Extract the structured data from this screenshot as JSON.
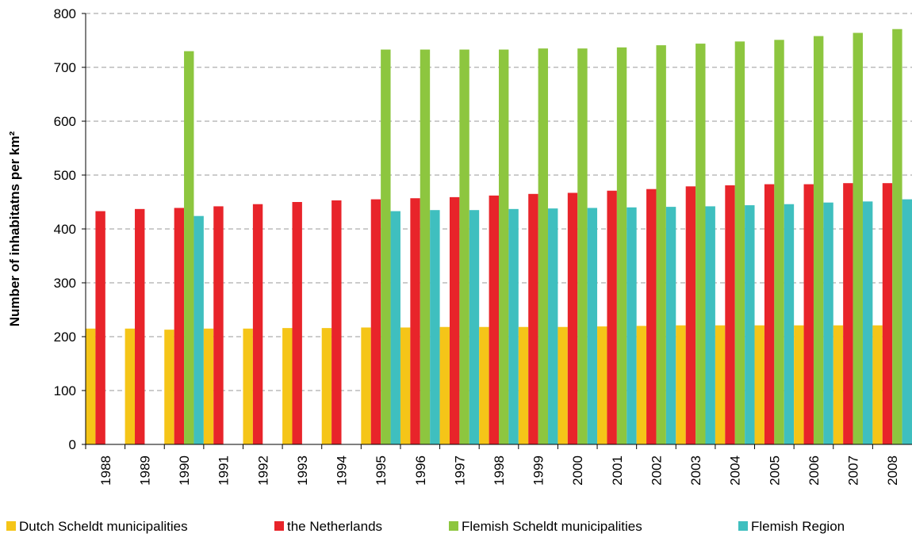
{
  "chart_data": {
    "type": "bar",
    "y_label": "Number of inhabitatns per km²",
    "categories": [
      "1988",
      "1989",
      "1990",
      "1991",
      "1992",
      "1993",
      "1994",
      "1995",
      "1996",
      "1997",
      "1998",
      "1999",
      "2000",
      "2001",
      "2002",
      "2003",
      "2004",
      "2005",
      "2006",
      "2007",
      "2008"
    ],
    "series": [
      {
        "name": "Dutch Scheldt municipalities",
        "color": "#f5c518",
        "values": [
          215,
          215,
          213,
          215,
          215,
          216,
          216,
          217,
          217,
          218,
          218,
          218,
          218,
          219,
          220,
          221,
          221,
          221,
          221,
          221,
          221
        ]
      },
      {
        "name": "the Netherlands",
        "color": "#e8242a",
        "values": [
          433,
          437,
          439,
          442,
          446,
          450,
          453,
          455,
          457,
          459,
          462,
          465,
          467,
          471,
          474,
          479,
          481,
          483,
          483,
          485,
          485
        ]
      },
      {
        "name": "Flemish Scheldt municipalities",
        "color": "#8dc63f",
        "values": [
          null,
          null,
          730,
          null,
          null,
          null,
          null,
          733,
          733,
          733,
          733,
          735,
          735,
          737,
          741,
          744,
          748,
          751,
          758,
          764,
          771
        ]
      },
      {
        "name": "Flemish Region",
        "color": "#3fbfbf",
        "values": [
          null,
          null,
          424,
          null,
          null,
          null,
          null,
          433,
          435,
          435,
          437,
          438,
          439,
          440,
          441,
          442,
          444,
          446,
          449,
          451,
          455
        ]
      }
    ],
    "ylim": [
      0,
      800
    ],
    "yticks": [
      0,
      100,
      200,
      300,
      400,
      500,
      600,
      700,
      800
    ],
    "grid": true
  }
}
